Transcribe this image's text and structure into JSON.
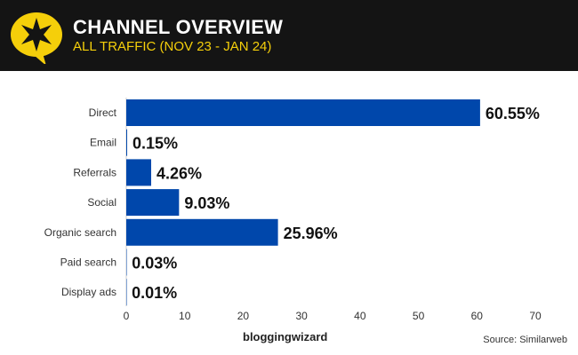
{
  "header": {
    "title": "CHANNEL OVERVIEW",
    "subtitle": "ALL TRAFFIC (NOV 23 - JAN 24)"
  },
  "footer": {
    "brand": "bloggingwizard",
    "source": "Source: Similarweb"
  },
  "colors": {
    "bar": "#0047ab",
    "header_bg": "#141414",
    "accent": "#f5cf0a"
  },
  "chart_data": {
    "type": "bar",
    "orientation": "horizontal",
    "categories": [
      "Direct",
      "Email",
      "Referrals",
      "Social",
      "Organic search",
      "Paid search",
      "Display ads"
    ],
    "values": [
      60.55,
      0.15,
      4.26,
      9.03,
      25.96,
      0.03,
      0.01
    ],
    "labels": [
      "60.55%",
      "0.15%",
      "4.26%",
      "9.03%",
      "25.96%",
      "0.03%",
      "0.01%"
    ],
    "xlim": [
      0,
      70
    ],
    "xticks": [
      "0",
      "10",
      "20",
      "30",
      "40",
      "50",
      "60",
      "70"
    ],
    "title": "CHANNEL OVERVIEW",
    "xlabel": "",
    "ylabel": "",
    "grid": false
  }
}
